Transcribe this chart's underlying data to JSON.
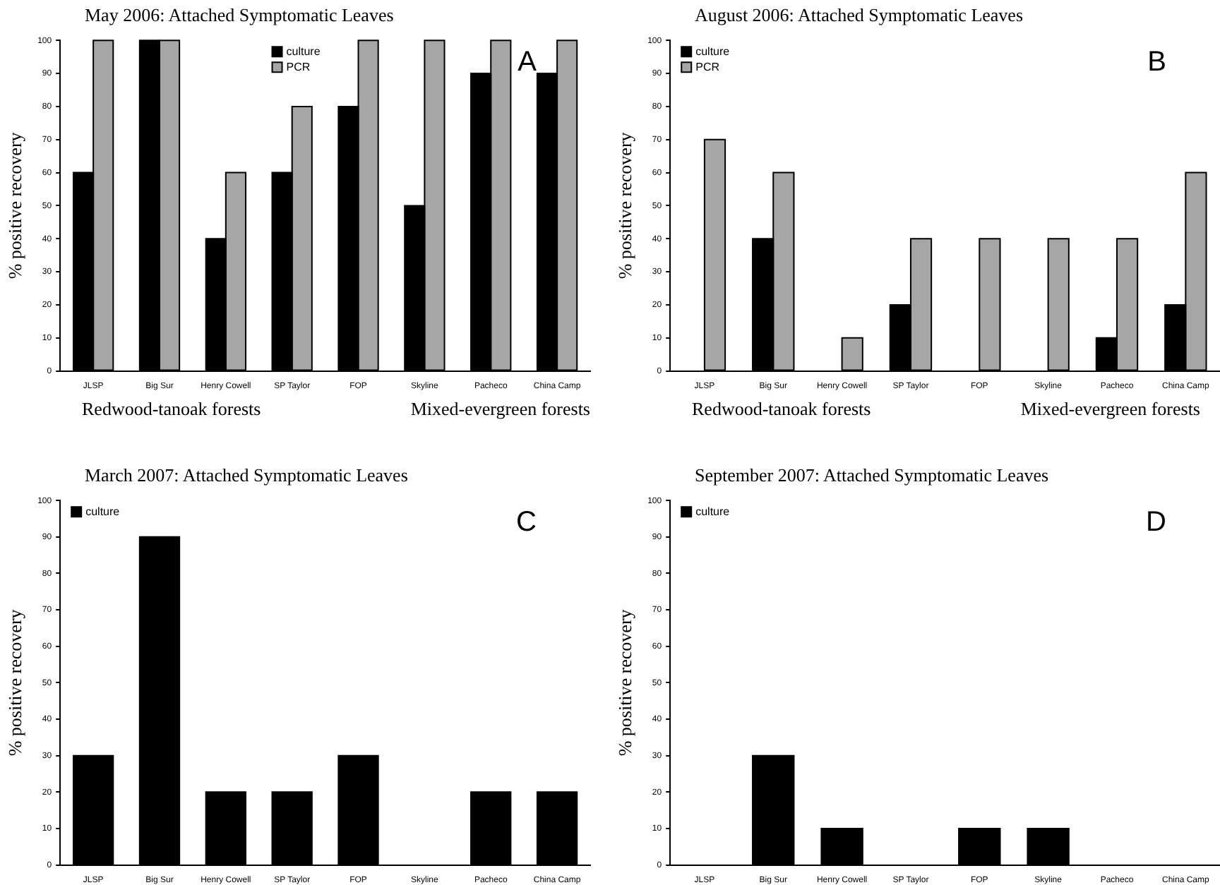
{
  "chart_data": [
    {
      "type": "bar",
      "title": "May 2006: Attached Symptomatic Leaves",
      "ylabel": "% positive recovery",
      "categories": [
        "JLSP",
        "Big Sur",
        "Henry Cowell",
        "SP Taylor",
        "FOP",
        "Skyline",
        "Pacheco",
        "China Camp"
      ],
      "series": [
        {
          "name": "culture",
          "color": "#000000",
          "values": [
            60,
            100,
            40,
            60,
            80,
            50,
            90,
            90
          ]
        },
        {
          "name": "PCR",
          "color": "#a6a6a6",
          "values": [
            100,
            100,
            60,
            80,
            100,
            100,
            100,
            100
          ]
        }
      ],
      "ylim": [
        0,
        100
      ],
      "yticks": [
        0,
        10,
        20,
        30,
        40,
        50,
        60,
        70,
        80,
        90,
        100
      ],
      "grid": false,
      "legend": "top",
      "annotations": [
        "A",
        "Redwood-tanoak forests",
        "Mixed-evergreen forests"
      ]
    },
    {
      "type": "bar",
      "title": "August 2006: Attached Symptomatic Leaves",
      "ylabel": "% positive recovery",
      "categories": [
        "JLSP",
        "Big Sur",
        "Henry Cowell",
        "SP Taylor",
        "FOP",
        "Skyline",
        "Pacheco",
        "China Camp"
      ],
      "series": [
        {
          "name": "culture",
          "color": "#000000",
          "values": [
            0,
            40,
            0,
            20,
            0,
            0,
            10,
            20
          ]
        },
        {
          "name": "PCR",
          "color": "#a6a6a6",
          "values": [
            70,
            60,
            10,
            40,
            40,
            40,
            40,
            60
          ]
        }
      ],
      "ylim": [
        0,
        100
      ],
      "yticks": [
        0,
        10,
        20,
        30,
        40,
        50,
        60,
        70,
        80,
        90,
        100
      ],
      "grid": false,
      "legend": "top left",
      "annotations": [
        "B",
        "Redwood-tanoak forests",
        "Mixed-evergreen forests"
      ]
    },
    {
      "type": "bar",
      "title": "March 2007: Attached Symptomatic Leaves",
      "ylabel": "% positive recovery",
      "categories": [
        "JLSP",
        "Big Sur",
        "Henry Cowell",
        "SP Taylor",
        "FOP",
        "Skyline",
        "Pacheco",
        "China Camp"
      ],
      "series": [
        {
          "name": "culture",
          "color": "#000000",
          "values": [
            30,
            90,
            20,
            20,
            30,
            0,
            20,
            20
          ]
        }
      ],
      "ylim": [
        0,
        100
      ],
      "yticks": [
        0,
        10,
        20,
        30,
        40,
        50,
        60,
        70,
        80,
        90,
        100
      ],
      "grid": false,
      "legend": "top left",
      "annotations": [
        "C"
      ]
    },
    {
      "type": "bar",
      "title": "September 2007: Attached Symptomatic Leaves",
      "ylabel": "% positive recovery",
      "categories": [
        "JLSP",
        "Big Sur",
        "Henry Cowell",
        "SP Taylor",
        "FOP",
        "Skyline",
        "Pacheco",
        "China Camp"
      ],
      "series": [
        {
          "name": "culture",
          "color": "#000000",
          "values": [
            0,
            30,
            10,
            0,
            10,
            10,
            0,
            0
          ]
        }
      ],
      "ylim": [
        0,
        100
      ],
      "yticks": [
        0,
        10,
        20,
        30,
        40,
        50,
        60,
        70,
        80,
        90,
        100
      ],
      "grid": false,
      "legend": "top left",
      "annotations": [
        "D"
      ]
    }
  ]
}
